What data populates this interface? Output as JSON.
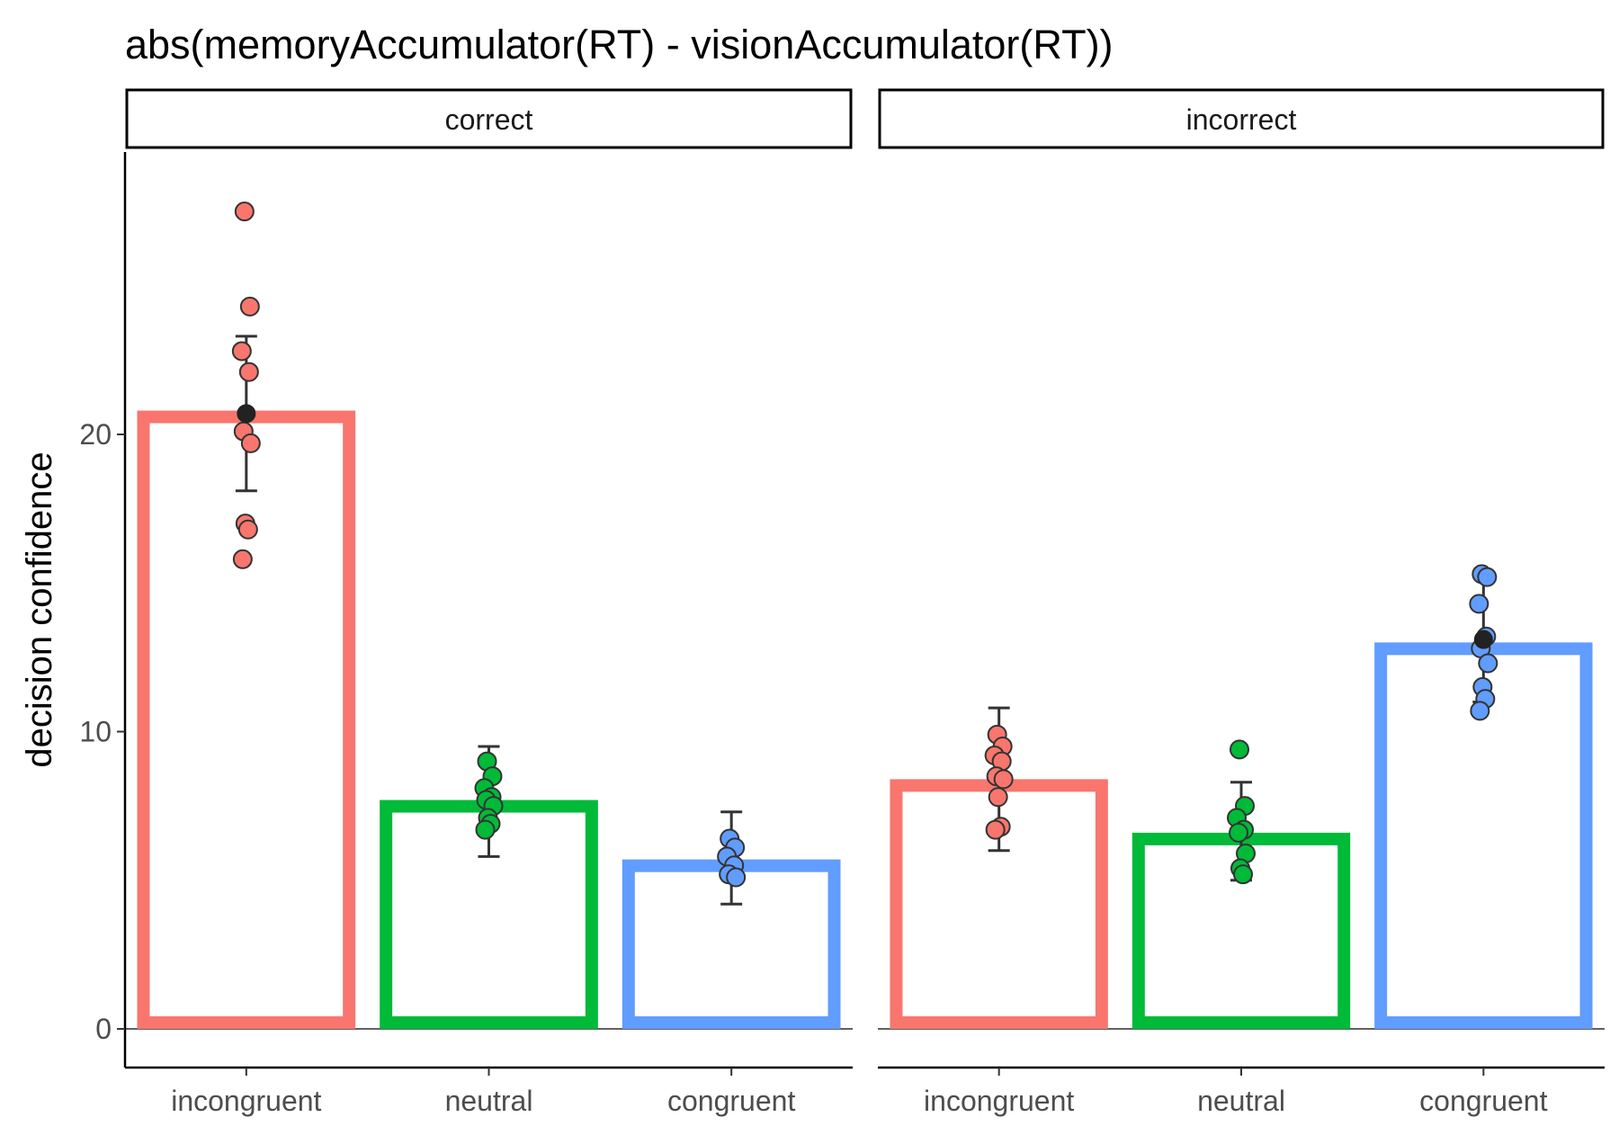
{
  "chart_data": {
    "type": "bar",
    "title": "abs(memoryAccumulator(RT) - visionAccumulator(RT))",
    "ylabel": "decision confidence",
    "xlabel": "",
    "ylim": [
      -1.3,
      29.5
    ],
    "y_ticks": [
      0,
      10,
      20
    ],
    "categories": [
      "incongruent",
      "neutral",
      "congruent"
    ],
    "colors": {
      "incongruent": "#F8766D",
      "neutral": "#00BA38",
      "congruent": "#619CFF"
    },
    "grid": false,
    "legend": "none",
    "facets": [
      {
        "label": "correct",
        "bars": [
          20.8,
          7.7,
          5.7
        ],
        "error_bars": [
          [
            18.1,
            23.3
          ],
          [
            5.8,
            9.5
          ],
          [
            4.2,
            7.3
          ]
        ],
        "mean_markers": [
          20.7,
          null,
          null
        ],
        "points": [
          [
            27.5,
            24.3,
            22.8,
            22.1,
            20.1,
            19.7,
            17.0,
            16.8,
            15.8
          ],
          [
            9.0,
            8.5,
            8.1,
            7.8,
            7.7,
            7.5,
            7.1,
            6.9,
            6.7
          ],
          [
            6.4,
            6.1,
            5.8,
            5.5,
            5.2,
            5.1
          ]
        ]
      },
      {
        "label": "incorrect",
        "bars": [
          8.4,
          6.6,
          13.0
        ],
        "error_bars": [
          [
            6.0,
            10.8
          ],
          [
            5.0,
            8.3
          ],
          [
            11.0,
            15.3
          ]
        ],
        "mean_markers": [
          null,
          null,
          13.1
        ],
        "points": [
          [
            9.9,
            9.5,
            9.2,
            9.0,
            8.5,
            8.4,
            7.8,
            6.8,
            6.7
          ],
          [
            9.4,
            7.5,
            7.1,
            6.7,
            6.6,
            5.9,
            5.4,
            5.2
          ],
          [
            15.3,
            15.2,
            14.3,
            13.2,
            12.8,
            12.3,
            11.5,
            11.1,
            10.7
          ]
        ]
      }
    ]
  }
}
